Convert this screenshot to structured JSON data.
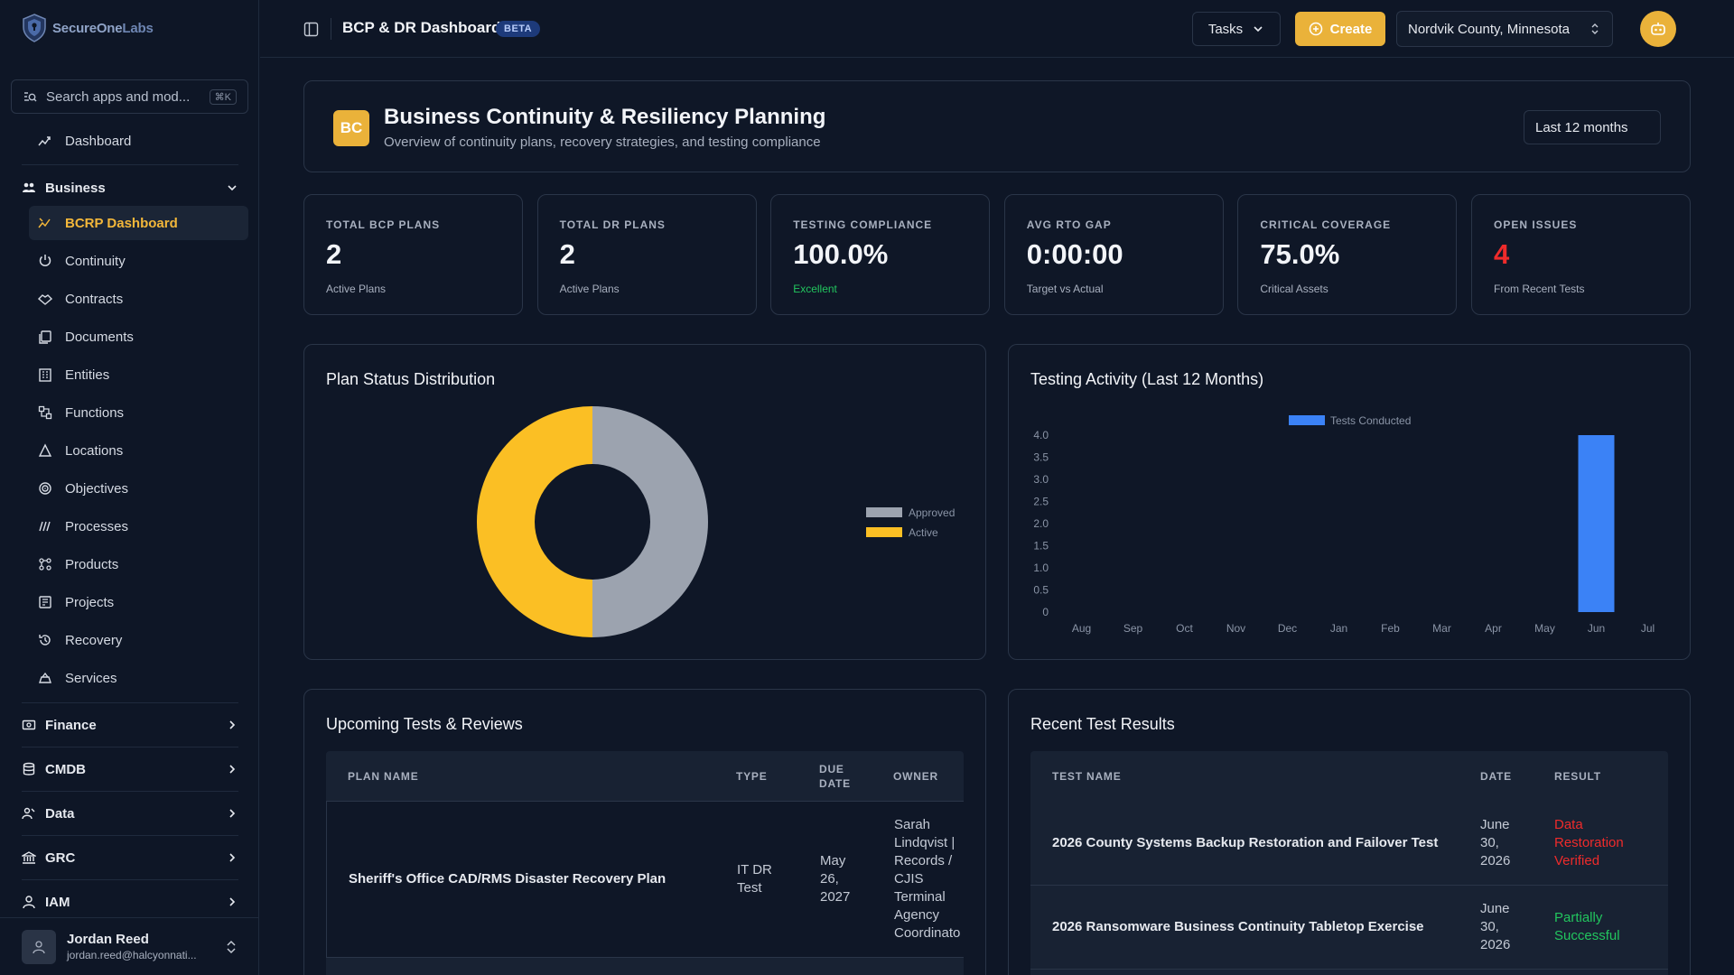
{
  "app": {
    "logo_primary": "SecureOne",
    "logo_secondary": "Labs"
  },
  "sidebar": {
    "search_placeholder": "Search apps and mod...",
    "search_shortcut": "⌘K",
    "dashboard_label": "Dashboard",
    "business_group": "Business",
    "items": [
      {
        "label": "BCRP Dashboard",
        "icon": "chart-icon",
        "active": true
      },
      {
        "label": "Continuity",
        "icon": "power-icon"
      },
      {
        "label": "Contracts",
        "icon": "handshake-icon"
      },
      {
        "label": "Documents",
        "icon": "documents-icon"
      },
      {
        "label": "Entities",
        "icon": "building-icon"
      },
      {
        "label": "Functions",
        "icon": "functions-icon"
      },
      {
        "label": "Locations",
        "icon": "location-icon"
      },
      {
        "label": "Objectives",
        "icon": "target-icon"
      },
      {
        "label": "Processes",
        "icon": "processes-icon"
      },
      {
        "label": "Products",
        "icon": "products-icon"
      },
      {
        "label": "Projects",
        "icon": "projects-icon"
      },
      {
        "label": "Recovery",
        "icon": "history-icon"
      },
      {
        "label": "Services",
        "icon": "services-icon"
      }
    ],
    "groups": [
      {
        "label": "Finance",
        "icon": "finance-icon"
      },
      {
        "label": "CMDB",
        "icon": "database-icon"
      },
      {
        "label": "Data",
        "icon": "data-icon"
      },
      {
        "label": "GRC",
        "icon": "bank-icon"
      },
      {
        "label": "IAM",
        "icon": "user-icon"
      }
    ],
    "user": {
      "name": "Jordan Reed",
      "email": "jordan.reed@halcyonnati..."
    }
  },
  "topbar": {
    "title": "BCP & DR Dashboard",
    "badge": "BETA",
    "tasks_label": "Tasks",
    "create_label": "Create",
    "organization": "Nordvik County, Minnesota"
  },
  "hero": {
    "badge": "BC",
    "title": "Business Continuity & Resiliency Planning",
    "subtitle": "Overview of continuity plans, recovery strategies, and testing compliance",
    "period": "Last 12 months"
  },
  "kpis": [
    {
      "label": "Total BCP Plans",
      "value": "2",
      "note": "Active Plans",
      "note_color": "#a8b0bf",
      "value_color": "#f2f4f8"
    },
    {
      "label": "Total DR Plans",
      "value": "2",
      "note": "Active Plans",
      "note_color": "#a8b0bf",
      "value_color": "#f2f4f8"
    },
    {
      "label": "Testing Compliance",
      "value": "100.0%",
      "note": "Excellent",
      "note_color": "#22c55e",
      "value_color": "#f2f4f8"
    },
    {
      "label": "Avg RTO Gap",
      "value": "0:00:00",
      "note": "Target vs Actual",
      "note_color": "#a8b0bf",
      "value_color": "#f2f4f8"
    },
    {
      "label": "Critical Coverage",
      "value": "75.0%",
      "note": "Critical Assets",
      "note_color": "#a8b0bf",
      "value_color": "#f2f4f8"
    },
    {
      "label": "Open Issues",
      "value": "4",
      "note": "From Recent Tests",
      "note_color": "#a8b0bf",
      "value_color": "#ef2b2b"
    }
  ],
  "chart_data": [
    {
      "type": "pie",
      "title": "Plan Status Distribution",
      "donut": true,
      "categories": [
        "Approved",
        "Active"
      ],
      "values": [
        1,
        1
      ],
      "colors": [
        "#9ca3af",
        "#fbbf24"
      ],
      "legend_position": "right"
    },
    {
      "type": "bar",
      "title": "Testing Activity (Last 12 Months)",
      "categories": [
        "Aug",
        "Sep",
        "Oct",
        "Nov",
        "Dec",
        "Jan",
        "Feb",
        "Mar",
        "Apr",
        "May",
        "Jun",
        "Jul"
      ],
      "series": [
        {
          "name": "Tests Conducted",
          "values": [
            0,
            0,
            0,
            0,
            0,
            0,
            0,
            0,
            0,
            0,
            4,
            0
          ],
          "color": "#3b82f6"
        }
      ],
      "ylim": [
        0,
        4.0
      ],
      "yticks": [
        "0",
        "0.5",
        "1.0",
        "1.5",
        "2.0",
        "2.5",
        "3.0",
        "3.5",
        "4.0"
      ],
      "legend_position": "top"
    }
  ],
  "upcoming": {
    "title": "Upcoming Tests & Reviews",
    "columns": [
      "Plan Name",
      "Type",
      "Due Date",
      "Owner"
    ],
    "rows": [
      {
        "plan": "Sheriff's Office CAD/RMS Disaster Recovery Plan",
        "type": "IT DR Test",
        "due": "May 26, 2027",
        "owner": "Sarah Lindqvist | Records / CJIS Terminal Agency Coordinato"
      }
    ]
  },
  "recent": {
    "title": "Recent Test Results",
    "columns": [
      "Test Name",
      "Date",
      "Result"
    ],
    "rows": [
      {
        "name": "2026 County Systems Backup Restoration and Failover Test",
        "date": "June 30, 2026",
        "result": "Data Restoration Verified",
        "result_color": "#ef2b2b"
      },
      {
        "name": "2026 Ransomware Business Continuity Tabletop Exercise",
        "date": "June 30, 2026",
        "result": "Partially Successful",
        "result_color": "#22c55e"
      }
    ]
  }
}
